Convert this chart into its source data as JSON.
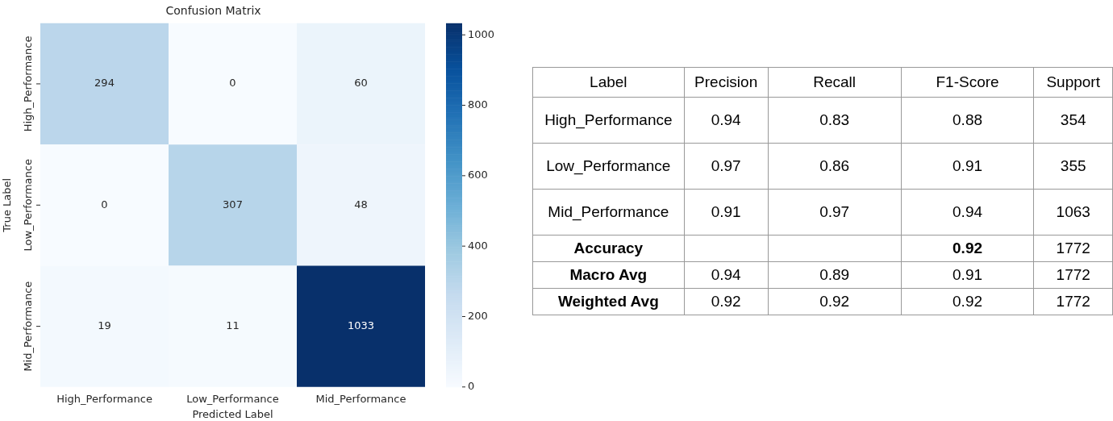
{
  "chart_data": [
    {
      "type": "heatmap",
      "title": "Confusion Matrix",
      "xlabel": "Predicted Label",
      "ylabel": "True Label",
      "categories": [
        "High_Performance",
        "Low_Performance",
        "Mid_Performance"
      ],
      "y_categories": [
        "High_Performance",
        "Low_Performance",
        "Mid_Performance"
      ],
      "cells": [
        [
          294,
          0,
          60
        ],
        [
          0,
          307,
          48
        ],
        [
          19,
          11,
          1033
        ]
      ],
      "data_labels": true,
      "clim": [
        0,
        1033
      ],
      "cticks": [
        0,
        200,
        400,
        600,
        800,
        1000
      ]
    },
    {
      "type": "other",
      "categories": [
        "Label",
        "Precision",
        "Recall",
        "F1-Score",
        "Support"
      ],
      "y_categories": [
        "High_Performance",
        "Low_Performance",
        "Mid_Performance",
        "Accuracy",
        "Macro Avg",
        "Weighted Avg"
      ],
      "cell_labels": [
        [
          "0.94",
          "0.83",
          "0.88",
          "354"
        ],
        [
          "0.97",
          "0.86",
          "0.91",
          "355"
        ],
        [
          "0.91",
          "0.97",
          "0.94",
          "1063"
        ],
        [
          null,
          null,
          "0.92",
          "1772"
        ],
        [
          "0.94",
          "0.89",
          "0.91",
          "1772"
        ],
        [
          "0.92",
          "0.92",
          "0.92",
          "1772"
        ]
      ]
    }
  ]
}
